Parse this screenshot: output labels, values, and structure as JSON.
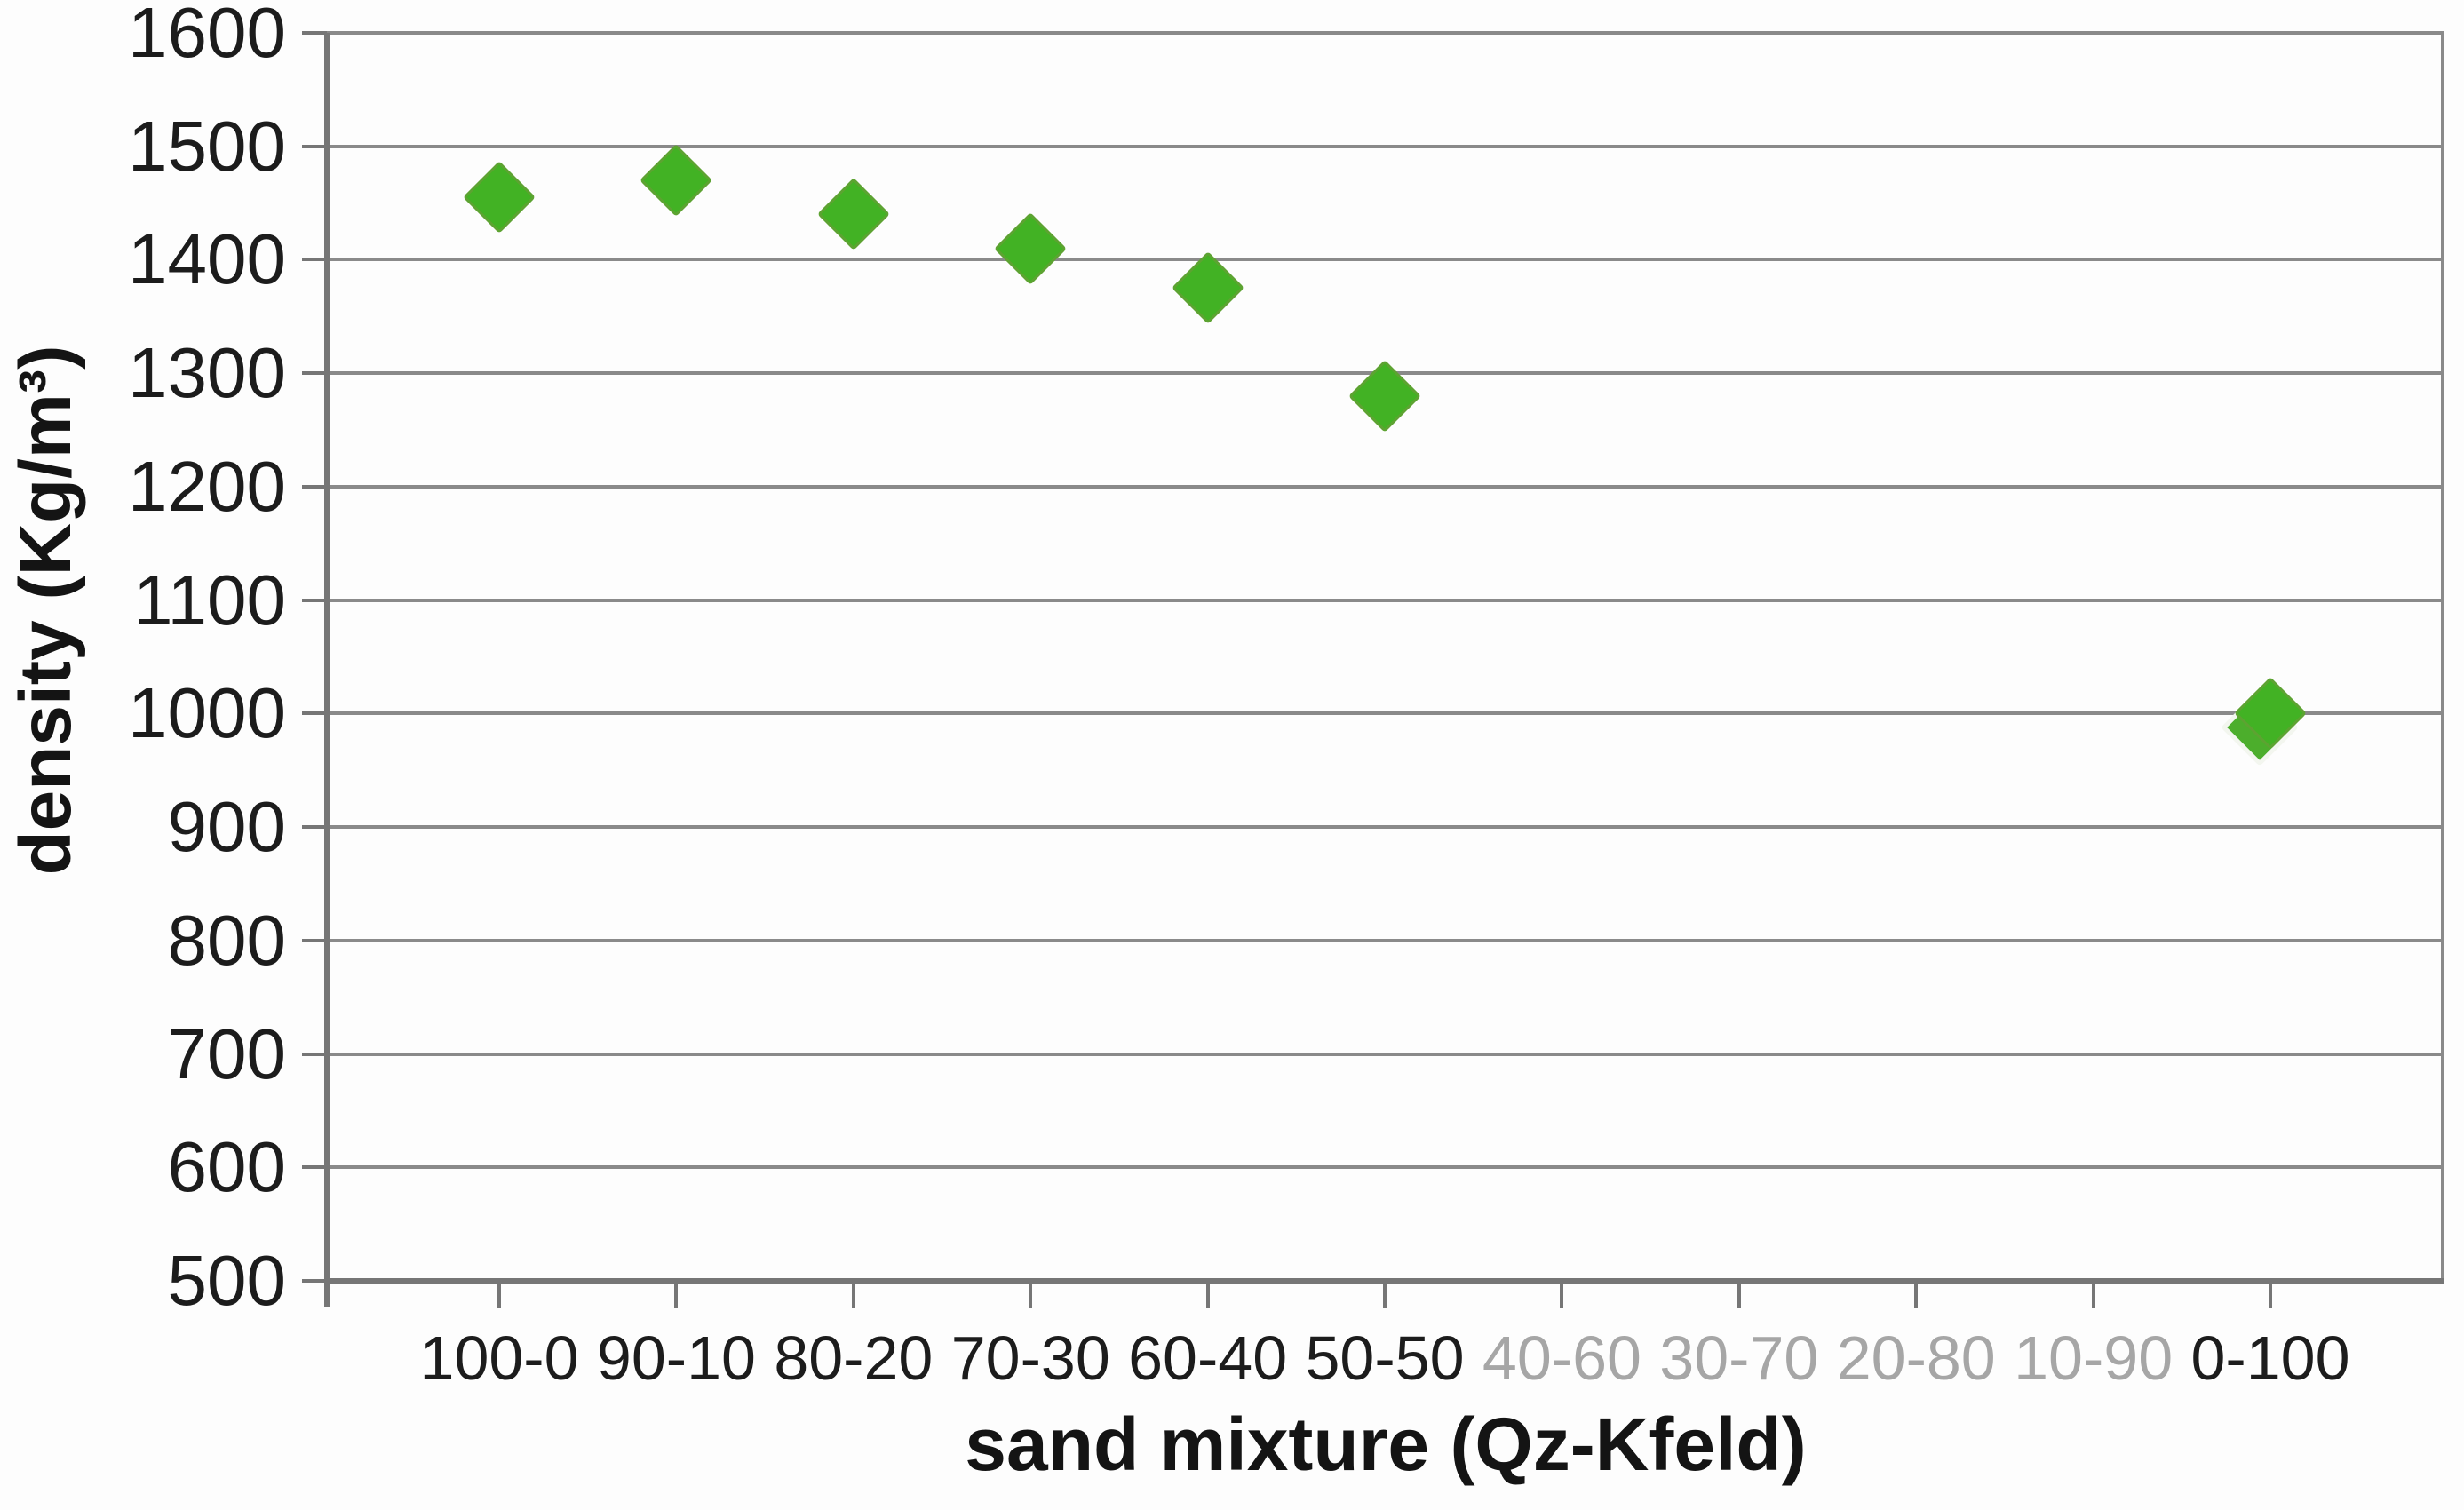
{
  "chart_data": {
    "type": "scatter",
    "title": "",
    "xlabel": "sand mixture (Qz-Kfeld)",
    "ylabel": "density (Kg/m³)",
    "ylim": [
      500,
      1600
    ],
    "ytick_step": 100,
    "yticks": [
      1600,
      1500,
      1400,
      1300,
      1200,
      1100,
      1000,
      900,
      800,
      700,
      600,
      500
    ],
    "categories": [
      "100-0",
      "90-10",
      "80-20",
      "70-30",
      "60-40",
      "50-50",
      "40-60",
      "30-70",
      "20-80",
      "10-90",
      "0-100"
    ],
    "category_label_style": [
      "black",
      "black",
      "black",
      "black",
      "black",
      "black",
      "gray",
      "gray",
      "gray",
      "gray",
      "black"
    ],
    "series": [
      {
        "name": "density",
        "marker": "diamond",
        "values": [
          1455,
          1470,
          1440,
          1410,
          1375,
          1280,
          null,
          null,
          null,
          null,
          1000
        ]
      }
    ],
    "marker_overlap": {
      "category": "0-100",
      "approx_value": 988
    },
    "grid": "horizontal",
    "legend": "none"
  },
  "colors": {
    "background": "#fdfdfd",
    "gridline": "#8a8a8a",
    "axis": "#767676",
    "tick_label": "#1c1c1c",
    "muted_tick_label": "#a6a6a6",
    "marker_fill": "#42b224",
    "marker_edge": "#5da332"
  }
}
